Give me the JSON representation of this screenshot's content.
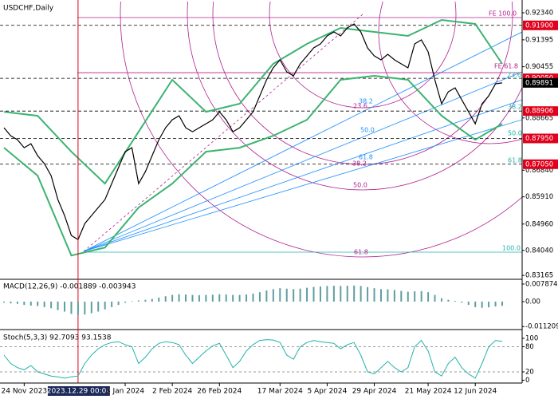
{
  "chart_data": [
    {
      "type": "line",
      "title": "USDCHF,Daily",
      "categories": [
        null,
        null,
        null,
        "24 Nov 2023",
        null,
        null,
        null,
        null,
        null,
        null,
        null,
        null,
        null,
        null,
        null,
        null,
        null,
        null,
        "8 Jan 2024",
        null,
        null,
        null,
        null,
        null,
        null,
        "2 Feb 2024",
        null,
        null,
        null,
        null,
        null,
        null,
        "26 Feb 2024",
        null,
        null,
        null,
        null,
        null,
        null,
        null,
        null,
        "17 Mar 2024",
        null,
        null,
        null,
        null,
        null,
        null,
        "5 Apr 2024",
        null,
        null,
        null,
        null,
        null,
        null,
        "29 Apr 2024",
        null,
        null,
        null,
        null,
        null,
        null,
        null,
        "21 May 2024",
        null,
        null,
        null,
        null,
        null,
        null,
        "12 Jun 2024",
        null,
        null,
        null,
        null
      ],
      "x_marker": {
        "value": 11,
        "label": "2023.12.29 00:00"
      },
      "series": [
        {
          "color": "#000000",
          "values": [
            0.88324,
            0.88045,
            0.87906,
            0.87627,
            0.87766,
            0.87348,
            0.87069,
            0.86651,
            0.85814,
            0.85256,
            0.84559,
            0.84419,
            0.84977,
            0.85256,
            0.85535,
            0.85814,
            0.86372,
            0.86929,
            0.87487,
            0.87627,
            0.86372,
            0.8679,
            0.87348,
            0.87906,
            0.88324,
            0.88603,
            0.88742,
            0.88324,
            0.88184,
            0.88324,
            0.88463,
            0.88603,
            0.88882,
            0.88603,
            0.88184,
            0.88324,
            0.88603,
            0.88882,
            0.89439,
            0.89997,
            0.90416,
            0.90694,
            0.90276,
            0.90137,
            0.90555,
            0.90834,
            0.91113,
            0.91252,
            0.91531,
            0.91671,
            0.91531,
            0.9181,
            0.9195,
            0.91671,
            0.91113,
            0.90834,
            0.90694,
            0.9089,
            0.90694,
            0.90555,
            0.90416,
            0.91252,
            0.91392,
            0.90973,
            0.89997,
            0.8916,
            0.89579,
            0.89718,
            0.893,
            0.88882,
            0.88463,
            0.8916,
            0.89439,
            0.89858,
            0.89891
          ]
        }
      ],
      "bands": [
        {
          "color": "#3cb371",
          "x": [
            0,
            5,
            10,
            15,
            20,
            25,
            30,
            35,
            40,
            45,
            50,
            55,
            60,
            65,
            70,
            74
          ],
          "values": [
            0.88882,
            0.88742,
            0.87487,
            0.86372,
            0.88184,
            0.89997,
            0.88882,
            0.89161,
            0.90555,
            0.91252,
            0.9181,
            0.91671,
            0.91531,
            0.92089,
            0.9195,
            0.90555
          ]
        },
        {
          "color": "#3cb371",
          "x": [
            0,
            5,
            10,
            15,
            20,
            25,
            30,
            35,
            40,
            45,
            50,
            55,
            60,
            65,
            70,
            74
          ],
          "values": [
            0.87627,
            0.86651,
            0.83862,
            0.8414,
            0.85535,
            0.86372,
            0.87487,
            0.87627,
            0.88045,
            0.88603,
            0.89997,
            0.90137,
            0.89997,
            0.88742,
            0.87906,
            0.88463
          ]
        }
      ],
      "ylim": [
        0.8303,
        0.9273
      ],
      "yticks": [
        {
          "value": 0.9234,
          "label": "0.92340"
        },
        0.91395,
        0.90455,
        0.88665,
        {
          "value": 0.8684,
          "label": "0.86840"
        },
        {
          "value": 0.8591,
          "label": "0.85910"
        },
        {
          "value": 0.8496,
          "label": "0.84960"
        },
        {
          "value": 0.8404,
          "label": "0.84040"
        },
        0.83165
      ],
      "levels": [
        {
          "value": 0.919,
          "label": "0.91900",
          "color": "#e0001b"
        },
        {
          "value": 0.9005,
          "label": "0.90050",
          "color": "#e0001b"
        },
        {
          "value": 0.88906,
          "label": "0.88906",
          "color": "#e0001b"
        },
        {
          "value": 0.8795,
          "label": "0.87950",
          "color": "#e0001b"
        },
        {
          "value": 0.8705,
          "label": "0.87050",
          "color": "#e0001b"
        }
      ],
      "fe_levels": [
        {
          "value": 0.92173,
          "color": "#b0208f"
        },
        {
          "value": 0.90248,
          "color": "#b0208f"
        }
      ],
      "current": {
        "value": 0.89891,
        "label": "0.89891",
        "color": "#000000"
      },
      "fib_labels": [
        "FE 100.0",
        "FE 61.8",
        "23.6",
        "38.2",
        "50.0",
        "61.8",
        "38.2",
        "50.0",
        "61.8",
        "100.0",
        "23.6",
        "38.2",
        "50.0",
        "61.8"
      ]
    },
    {
      "type": "bar",
      "title": "MACD(12,26,9) -0.001889 -0.003943",
      "color": "#5f9ea0",
      "values": [
        -0.0005,
        -0.0008,
        -0.001,
        -0.0015,
        -0.0018,
        -0.002,
        -0.0025,
        -0.003,
        -0.0038,
        -0.0045,
        -0.0055,
        -0.006,
        -0.0058,
        -0.0052,
        -0.0045,
        -0.0035,
        -0.0025,
        -0.0015,
        -0.0005,
        0.0002,
        0.0005,
        0.0008,
        0.0012,
        0.0018,
        0.0024,
        0.003,
        0.0033,
        0.0032,
        0.003,
        0.0029,
        0.003,
        0.0031,
        0.0033,
        0.0032,
        0.003,
        0.003,
        0.0032,
        0.0036,
        0.0042,
        0.005,
        0.0056,
        0.006,
        0.0058,
        0.0056,
        0.0058,
        0.0062,
        0.0066,
        0.0068,
        0.007,
        0.0071,
        0.007,
        0.0071,
        0.0072,
        0.007,
        0.0065,
        0.006,
        0.0056,
        0.0055,
        0.0052,
        0.0048,
        0.0044,
        0.0046,
        0.0047,
        0.0042,
        0.003,
        0.0015,
        0.0008,
        0.0003,
        -0.0005,
        -0.0015,
        -0.0025,
        -0.0028,
        -0.0026,
        -0.0022,
        -0.0019
      ],
      "ylim": [
        -0.0122,
        0.01
      ],
      "yticks": [
        0.007874,
        {
          "value": 0,
          "label": "0.00"
        },
        -0.011209
      ]
    },
    {
      "type": "line",
      "title": "Stoch(5,3,3) 92.7093 93.1538",
      "color": "#20b2aa",
      "values": [
        60,
        40,
        30,
        25,
        35,
        20,
        15,
        10,
        8,
        5,
        8,
        10,
        40,
        60,
        75,
        85,
        90,
        92,
        85,
        80,
        40,
        55,
        75,
        88,
        92,
        90,
        85,
        60,
        40,
        55,
        70,
        82,
        88,
        60,
        30,
        45,
        70,
        85,
        95,
        97,
        96,
        90,
        60,
        50,
        80,
        90,
        95,
        92,
        90,
        88,
        75,
        85,
        90,
        60,
        20,
        15,
        30,
        45,
        30,
        20,
        30,
        80,
        95,
        70,
        20,
        10,
        40,
        55,
        30,
        15,
        5,
        40,
        80,
        95,
        92.7
      ],
      "ylim": [
        -6.7,
        117.1
      ],
      "yticks": [
        100,
        80,
        20,
        0
      ]
    }
  ]
}
